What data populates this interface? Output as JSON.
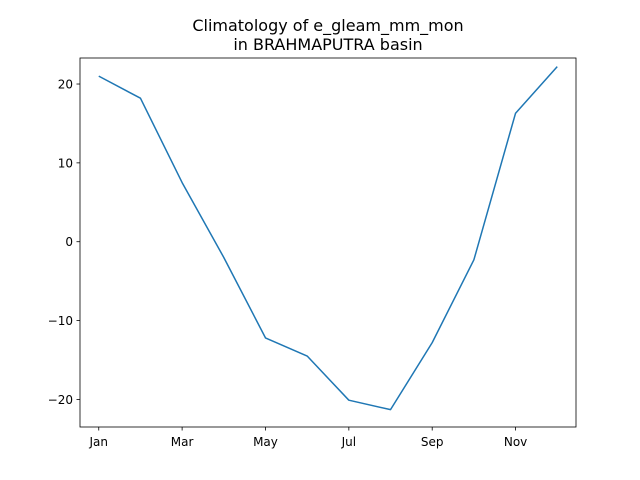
{
  "chart_data": {
    "type": "line",
    "title_line1": "Climatology of e_gleam_mm_mon",
    "title_line2": "in BRAHMAPUTRA basin",
    "xlabel": "",
    "ylabel": "",
    "x_tick_labels": [
      "Jan",
      "Mar",
      "May",
      "Jul",
      "Sep",
      "Nov"
    ],
    "x_tick_positions": [
      1,
      3,
      5,
      7,
      9,
      11
    ],
    "y_ticks": [
      -20,
      -10,
      0,
      10,
      20
    ],
    "y_tick_labels": [
      "−20",
      "−10",
      "0",
      "10",
      "20"
    ],
    "xlim": [
      0.55,
      12.45
    ],
    "ylim": [
      -23.5,
      23.3
    ],
    "grid": false,
    "series": [
      {
        "color": "#1f77b4",
        "x": [
          1,
          2,
          3,
          4,
          5,
          6,
          7,
          8,
          9,
          10,
          11,
          12
        ],
        "values": [
          21.0,
          18.2,
          7.5,
          -2.0,
          -12.2,
          -14.5,
          -20.1,
          -21.3,
          -12.8,
          -2.3,
          16.3,
          22.2
        ]
      }
    ]
  }
}
